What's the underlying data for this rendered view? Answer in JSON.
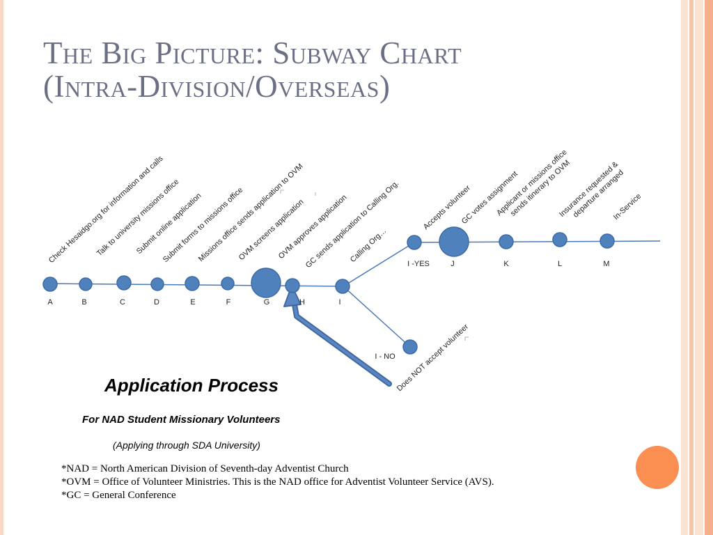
{
  "title": {
    "line1": "The Big Picture: Subway Chart",
    "line2": "(Intra-Division/Overseas)"
  },
  "subway": {
    "line_color": "#4a79b8",
    "stop_fill": "#4f81bd",
    "stop_stroke": "#3c6aa3",
    "arrow_color": "#41689e",
    "stops": [
      {
        "id": "A",
        "label": "A",
        "step": "Check Hesaidgo.org for information and calls"
      },
      {
        "id": "B",
        "label": "B",
        "step": "Talk to university missions office"
      },
      {
        "id": "C",
        "label": "C",
        "step": "Submit online application"
      },
      {
        "id": "D",
        "label": "D",
        "step": "Submit forms to missions office"
      },
      {
        "id": "E",
        "label": "E",
        "step": "Missions office sends application to OVM"
      },
      {
        "id": "F",
        "label": "F",
        "step": "OVM screens application"
      },
      {
        "id": "G",
        "label": "G",
        "step": "OVM approves application"
      },
      {
        "id": "H",
        "label": "H",
        "step": "GC sends application to Calling Org."
      },
      {
        "id": "I",
        "label": "I",
        "step": "Calling Org…"
      },
      {
        "id": "IYES",
        "label": "I -YES",
        "step": "Accepts volunteer"
      },
      {
        "id": "J",
        "label": "J",
        "step": "GC votes assignment"
      },
      {
        "id": "K",
        "label": "K",
        "step": "Applicant or missions office sends itinerary to OVM"
      },
      {
        "id": "L",
        "label": "L",
        "step": "Insurance requested & departure arranged"
      },
      {
        "id": "M",
        "label": "M",
        "step": "In-Service"
      },
      {
        "id": "INO",
        "label": "I - NO",
        "step": "Does NOT accept volunteer"
      }
    ]
  },
  "caption": {
    "title": "Application Process",
    "subtitle": "For NAD Student Missionary Volunteers",
    "note": "(Applying through SDA University)"
  },
  "footnotes": [
    "*NAD = North American Division of Seventh-day Adventist Church",
    "*OVM = Office of Volunteer Ministries.  This is the NAD office for Adventist Volunteer Service (AVS).",
    "*GC = General Conference"
  ],
  "theme": {
    "title_color": "#6a6f83",
    "accent_orange": "#fb8f52",
    "stripe_colors": [
      "#f9d9c6",
      "#f7c6a9",
      "#f4b08c"
    ]
  }
}
